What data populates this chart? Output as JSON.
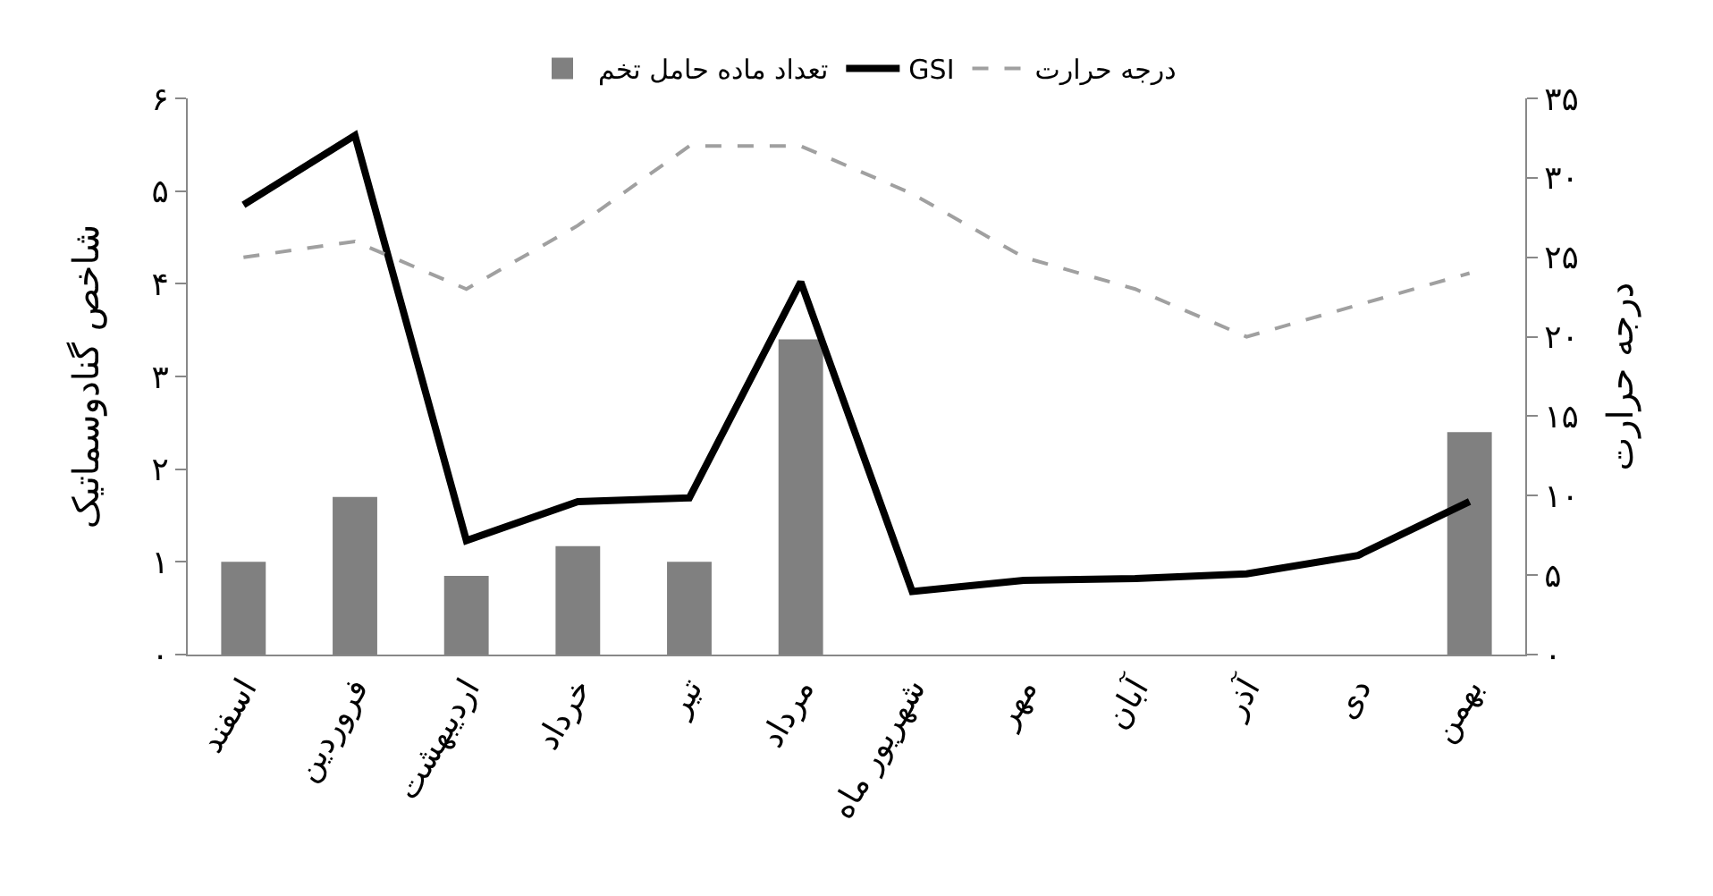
{
  "chart_data": {
    "type": "bar",
    "categories": [
      "اسفند",
      "فروردین",
      "اردیبهشت",
      "خرداد",
      "تیر",
      "مرداد",
      "شهریور ماه",
      "مهر",
      "آبان",
      "آذر",
      "دی",
      "بهمن"
    ],
    "series": [
      {
        "name": "تعداد ماده حامل تخم",
        "color": "#808080",
        "values": [
          1.0,
          1.7,
          0.85,
          1.17,
          1.0,
          3.4,
          null,
          null,
          null,
          null,
          null,
          2.4
        ]
      },
      {
        "name": "GSI",
        "type": "line",
        "color": "#000000",
        "line_style": "solid",
        "values": [
          4.85,
          5.6,
          1.23,
          1.65,
          1.69,
          4.02,
          0.68,
          0.8,
          0.82,
          0.87,
          1.07,
          1.65
        ]
      },
      {
        "name": "درجه حرارت",
        "type": "line",
        "axis": "y2",
        "color": "#a0a0a0",
        "line_style": "dashed",
        "values": [
          25,
          26,
          23,
          27,
          32,
          32,
          29,
          25,
          23,
          20,
          22,
          24
        ]
      }
    ],
    "ylabel": "شاخص گنادوسماتیک",
    "y2label": "درجه حرارت",
    "ylim": [
      0,
      6
    ],
    "yticks": [
      {
        "value": 0,
        "label": "۰"
      },
      {
        "value": 1,
        "label": "۱"
      },
      {
        "value": 2,
        "label": "۲"
      },
      {
        "value": 3,
        "label": "۳"
      },
      {
        "value": 4,
        "label": "۴"
      },
      {
        "value": 5,
        "label": "۵"
      },
      {
        "value": 6,
        "label": "۶"
      }
    ],
    "y2lim": [
      0,
      35
    ],
    "y2ticks": [
      {
        "value": 0,
        "label": "۰"
      },
      {
        "value": 5,
        "label": "۵"
      },
      {
        "value": 10,
        "label": "۱۰"
      },
      {
        "value": 15,
        "label": "۱۵"
      },
      {
        "value": 20,
        "label": "۲۰"
      },
      {
        "value": 25,
        "label": "۲۵"
      },
      {
        "value": 30,
        "label": "۳۰"
      },
      {
        "value": 35,
        "label": "۳۵"
      }
    ],
    "grid": false,
    "legend": "top",
    "marker": "none"
  }
}
